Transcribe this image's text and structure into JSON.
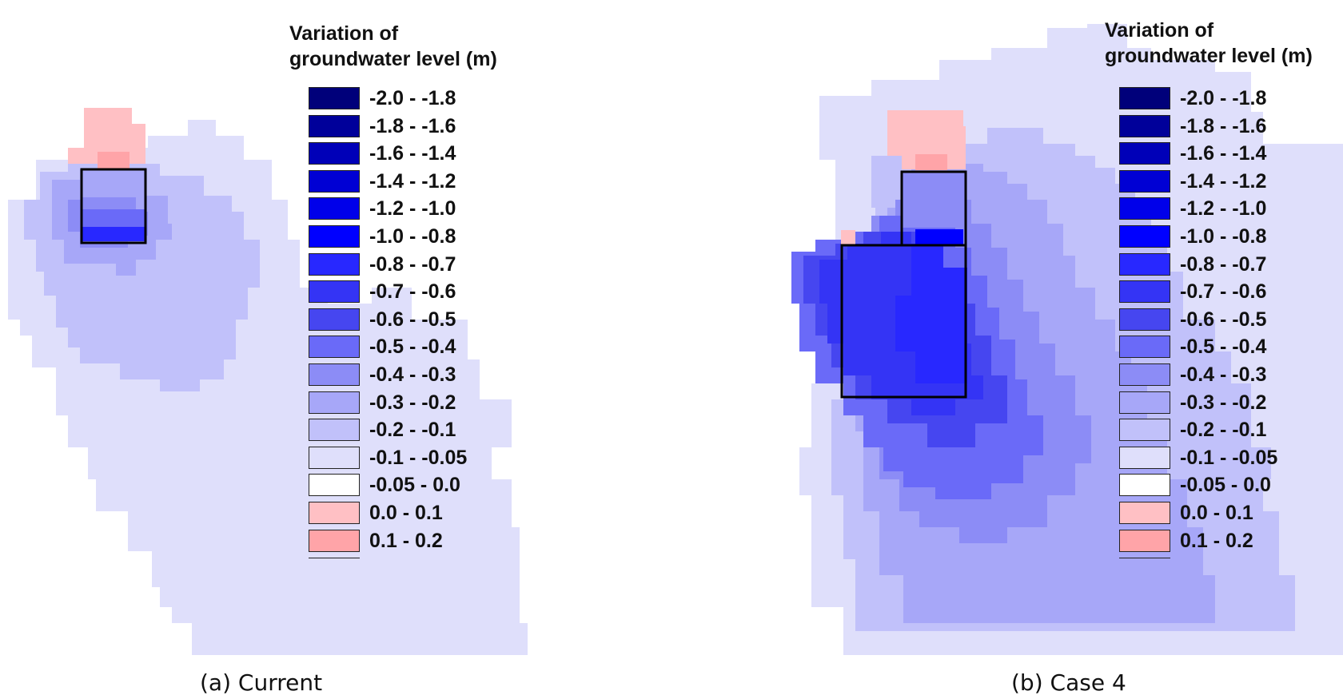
{
  "legend_title_line1": "Variation of",
  "legend_title_line2": "groundwater level (m)",
  "legend": [
    {
      "label": "-2.0 - -1.8",
      "color": "#00007a"
    },
    {
      "label": "-1.8 - -1.6",
      "color": "#00009a"
    },
    {
      "label": "-1.6 - -1.4",
      "color": "#0000b8"
    },
    {
      "label": "-1.4 - -1.2",
      "color": "#0000d4"
    },
    {
      "label": "-1.2 - -1.0",
      "color": "#0000ea"
    },
    {
      "label": "-1.0 - -0.8",
      "color": "#0000ff"
    },
    {
      "label": "-0.8 - -0.7",
      "color": "#2828ff"
    },
    {
      "label": "-0.7 - -0.6",
      "color": "#3434f5"
    },
    {
      "label": "-0.6 - -0.5",
      "color": "#4646f0"
    },
    {
      "label": "-0.5 - -0.4",
      "color": "#6a6af8"
    },
    {
      "label": "-0.4 - -0.3",
      "color": "#8c8cf6"
    },
    {
      "label": "-0.3 - -0.2",
      "color": "#a7a7f8"
    },
    {
      "label": "-0.2 - -0.1",
      "color": "#c1c1fa"
    },
    {
      "label": "-0.1 - -0.05",
      "color": "#dfdffb"
    },
    {
      "label": "-0.05 - 0.0",
      "color": "#ffffff"
    },
    {
      "label": "0.0 - 0.1",
      "color": "#ffc0c4"
    },
    {
      "label": "0.1 - 0.2",
      "color": "#ffa4a8"
    }
  ],
  "panels": [
    {
      "caption": "(a) Current"
    },
    {
      "caption": "(b) Case 4"
    }
  ]
}
